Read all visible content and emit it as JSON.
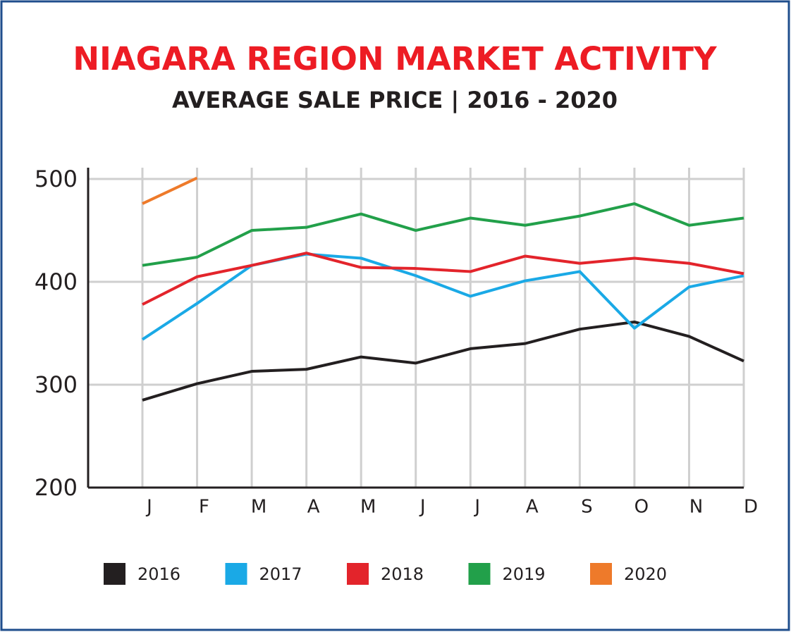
{
  "chart_data": {
    "type": "line",
    "title": "NIAGARA REGION MARKET ACTIVITY",
    "subtitle": "AVERAGE SALE PRICE | 2016 - 2020",
    "categories": [
      "J",
      "F",
      "M",
      "A",
      "M",
      "J",
      "J",
      "A",
      "S",
      "O",
      "N",
      "D"
    ],
    "series": [
      {
        "name": "2016",
        "color": "#231f20",
        "values": [
          285,
          301,
          313,
          315,
          327,
          321,
          335,
          340,
          354,
          361,
          347,
          323
        ]
      },
      {
        "name": "2017",
        "color": "#1aa9e6",
        "values": [
          344,
          379,
          416,
          427,
          423,
          406,
          386,
          401,
          410,
          355,
          395,
          406
        ]
      },
      {
        "name": "2018",
        "color": "#e3242b",
        "values": [
          378,
          405,
          416,
          428,
          414,
          413,
          410,
          425,
          418,
          423,
          418,
          408
        ]
      },
      {
        "name": "2019",
        "color": "#22a04a",
        "values": [
          416,
          424,
          450,
          453,
          466,
          450,
          462,
          455,
          464,
          476,
          455,
          462
        ]
      },
      {
        "name": "2020",
        "color": "#ee7a2a",
        "values": [
          476,
          501,
          null,
          null,
          null,
          null,
          null,
          null,
          null,
          null,
          null,
          null
        ]
      }
    ],
    "ylim": [
      200,
      511
    ],
    "yticks": [
      200,
      300,
      400,
      500
    ],
    "grid": true
  }
}
